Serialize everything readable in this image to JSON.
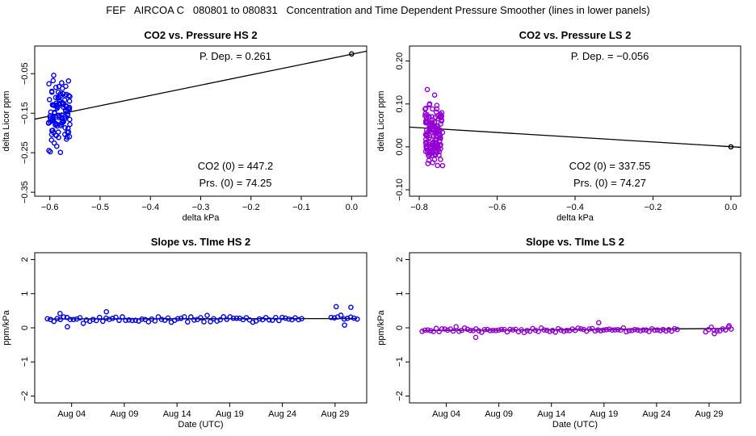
{
  "page": {
    "title": "FEF   AIRCOA C   080801 to 080831   Concentration and Time Dependent Pressure Smoother (lines in lower panels)"
  },
  "colors": {
    "hs": "#0000ee",
    "ls": "#9400d3",
    "fit": "#000000"
  },
  "chart_data": [
    {
      "id": "p1",
      "type": "scatter",
      "title": "CO2 vs. Pressure HS 2",
      "xlabel": "delta kPa",
      "ylabel": "delta Licor ppm",
      "xlim": [
        -0.63,
        0.03
      ],
      "ylim": [
        -0.36,
        0.02
      ],
      "xticks": [
        -0.6,
        -0.5,
        -0.4,
        -0.3,
        -0.2,
        -0.1,
        0.0
      ],
      "xtick_labels": [
        "−0.6",
        "−0.5",
        "−0.4",
        "−0.3",
        "−0.2",
        "−0.1",
        "0.0"
      ],
      "yticks": [
        -0.35,
        -0.25,
        -0.15,
        -0.05
      ],
      "ytick_labels": [
        "−0.35",
        "−0.25",
        "−0.15",
        "−0.05"
      ],
      "fit_line": {
        "x": [
          -0.63,
          0.03
        ],
        "y": [
          -0.165,
          0.007
        ]
      },
      "ref_point": {
        "x": 0.0,
        "y": 0.0
      },
      "cluster": {
        "x_range": [
          -0.605,
          -0.56
        ],
        "y_range": [
          -0.355,
          0.0
        ],
        "y_center": -0.15,
        "n": 110,
        "seed": 11
      },
      "annotations": {
        "pdep": "P. Dep. =  0.261",
        "co2_0": "CO2 (0) = 447.2",
        "prs_0": "Prs. (0) = 74.25"
      },
      "color_key": "hs"
    },
    {
      "id": "p2",
      "type": "scatter",
      "title": "CO2 vs. Pressure LS 2",
      "xlabel": "delta kPa",
      "ylabel": "delta Licor ppm",
      "xlim": [
        -0.825,
        0.025
      ],
      "ylim": [
        -0.115,
        0.235
      ],
      "xticks": [
        -0.8,
        -0.6,
        -0.4,
        -0.2,
        0.0
      ],
      "xtick_labels": [
        "−0.8",
        "−0.6",
        "−0.4",
        "−0.2",
        "0.0"
      ],
      "yticks": [
        -0.1,
        0.0,
        0.1,
        0.2
      ],
      "ytick_labels": [
        "−0.10",
        "0.00",
        "0.10",
        "0.20"
      ],
      "fit_line": {
        "x": [
          -0.825,
          0.025
        ],
        "y": [
          0.046,
          -0.001
        ]
      },
      "ref_point": {
        "x": 0.0,
        "y": 0.0
      },
      "cluster": {
        "x_range": [
          -0.785,
          -0.74
        ],
        "y_range": [
          -0.09,
          0.215
        ],
        "y_center": 0.03,
        "n": 150,
        "seed": 23
      },
      "annotations": {
        "pdep": "P. Dep. = −0.056",
        "co2_0": "CO2 (0) = 337.55",
        "prs_0": "Prs. (0) = 74.27"
      },
      "color_key": "ls"
    },
    {
      "id": "p3",
      "type": "scatter",
      "title": "Slope vs. TIme HS 2",
      "xlabel": "Date (UTC)",
      "ylabel": "ppm/kPa",
      "xlim": [
        0.0,
        31.5
      ],
      "ylim": [
        -2.2,
        2.2
      ],
      "xticks": [
        3.5,
        8.5,
        13.5,
        18.5,
        23.5,
        28.5
      ],
      "xtick_labels": [
        "Aug 04",
        "Aug 09",
        "Aug 14",
        "Aug 19",
        "Aug 24",
        "Aug 29"
      ],
      "yticks": [
        -2,
        -1,
        0,
        1,
        2
      ],
      "ytick_labels": [
        "−2",
        "−1",
        "0",
        "1",
        "2"
      ],
      "smooth_line": {
        "x": [
          1.2,
          30.6
        ],
        "y": [
          0.26,
          0.27
        ]
      },
      "series": {
        "x_start": 1.2,
        "x_end": 30.6,
        "gap": [
          25.5,
          28.0
        ],
        "n": 96,
        "base": 0.26,
        "amp": 0.12,
        "seed": 5
      },
      "extra_points": [
        {
          "x": 28.6,
          "y": 0.62
        },
        {
          "x": 30.0,
          "y": 0.6
        },
        {
          "x": 29.4,
          "y": 0.08
        },
        {
          "x": 2.4,
          "y": 0.42
        },
        {
          "x": 3.1,
          "y": 0.03
        },
        {
          "x": 6.8,
          "y": 0.47
        }
      ],
      "color_key": "hs"
    },
    {
      "id": "p4",
      "type": "scatter",
      "title": "Slope vs. TIme LS 2",
      "xlabel": "Date (UTC)",
      "ylabel": "ppm/kPa",
      "xlim": [
        0.0,
        31.5
      ],
      "ylim": [
        -2.2,
        2.2
      ],
      "xticks": [
        3.5,
        8.5,
        13.5,
        18.5,
        23.5,
        28.5
      ],
      "xtick_labels": [
        "Aug 04",
        "Aug 09",
        "Aug 14",
        "Aug 19",
        "Aug 24",
        "Aug 29"
      ],
      "yticks": [
        -2,
        -1,
        0,
        1,
        2
      ],
      "ytick_labels": [
        "−2",
        "−1",
        "0",
        "1",
        "2"
      ],
      "smooth_line": {
        "x": [
          1.2,
          30.6
        ],
        "y": [
          -0.08,
          -0.02
        ]
      },
      "series": {
        "x_start": 1.2,
        "x_end": 30.6,
        "gap": [
          25.5,
          28.0
        ],
        "n": 110,
        "base": -0.06,
        "amp": 0.09,
        "seed": 9
      },
      "extra_points": [
        {
          "x": 6.3,
          "y": -0.28
        },
        {
          "x": 18.0,
          "y": 0.15
        },
        {
          "x": 29.0,
          "y": -0.17
        },
        {
          "x": 30.4,
          "y": 0.06
        }
      ],
      "color_key": "ls"
    }
  ]
}
